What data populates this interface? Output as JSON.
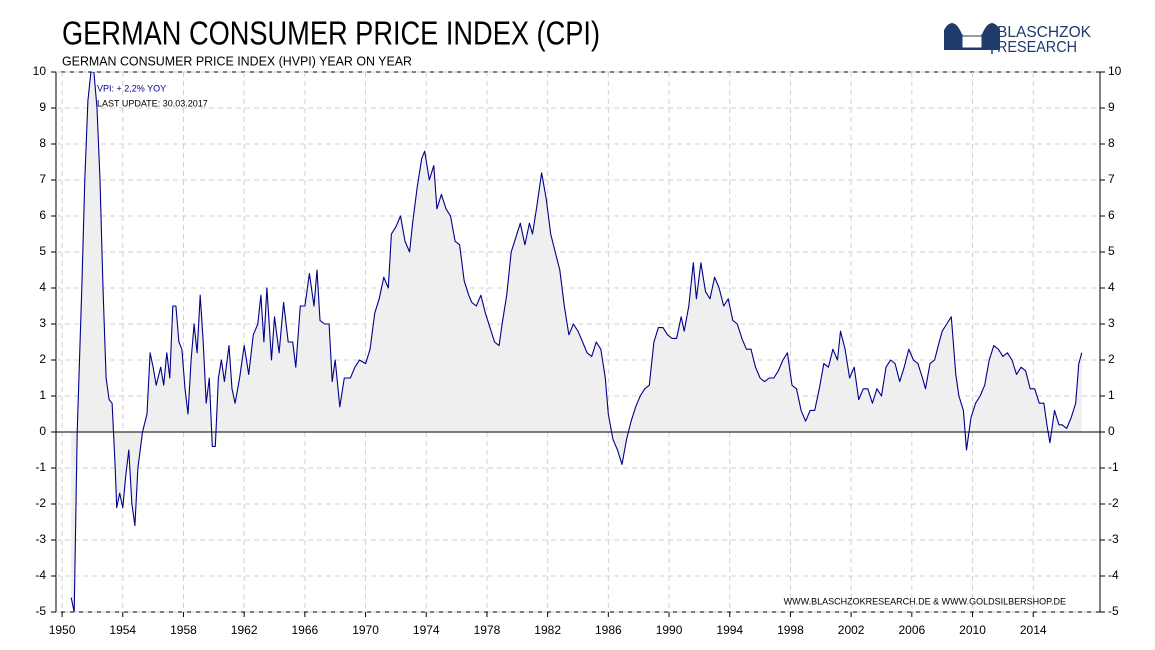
{
  "chart_data": {
    "type": "area-line",
    "title": "GERMAN CONSUMER PRICE INDEX (CPI)",
    "subtitle": "GERMAN CONSUMER PRICE INDEX (HVPI) YEAR  ON YEAR",
    "annotations": [
      "VPI: + 2,2%  YOY",
      "LAST UPDATE: 30.03.2017"
    ],
    "footer": "WWW.BLASCHZOKRESEARCH.DE  &  WWW.GOLDSILBERSHOP.DE",
    "logo": [
      "BLASCHZOK",
      "RESEARCH"
    ],
    "color": "#00008b",
    "fill": "#efefef",
    "grid": true,
    "xlim": [
      1949.6,
      2018.4
    ],
    "ylim": [
      -5,
      10
    ],
    "xticks": [
      1950,
      1954,
      1958,
      1962,
      1966,
      1970,
      1974,
      1978,
      1982,
      1986,
      1990,
      1994,
      1998,
      2002,
      2006,
      2010,
      2014
    ],
    "yticks": [
      -5,
      -4,
      -3,
      -2,
      -1,
      0,
      1,
      2,
      3,
      4,
      5,
      6,
      7,
      8,
      9,
      10
    ],
    "x": [
      1950.6,
      1950.8,
      1951.0,
      1951.3,
      1951.5,
      1951.7,
      1951.9,
      1952.1,
      1952.3,
      1952.5,
      1952.7,
      1952.9,
      1953.1,
      1953.3,
      1953.5,
      1953.6,
      1953.8,
      1954.0,
      1954.2,
      1954.4,
      1954.6,
      1954.8,
      1955.0,
      1955.3,
      1955.6,
      1955.8,
      1956.0,
      1956.2,
      1956.5,
      1956.7,
      1956.9,
      1957.1,
      1957.3,
      1957.5,
      1957.7,
      1957.9,
      1958.1,
      1958.3,
      1958.5,
      1958.7,
      1958.9,
      1959.1,
      1959.3,
      1959.5,
      1959.7,
      1959.9,
      1960.1,
      1960.3,
      1960.5,
      1960.7,
      1961.0,
      1961.2,
      1961.4,
      1961.7,
      1962.0,
      1962.3,
      1962.6,
      1962.9,
      1963.1,
      1963.3,
      1963.5,
      1963.8,
      1964.0,
      1964.3,
      1964.6,
      1964.9,
      1965.2,
      1965.4,
      1965.7,
      1966.0,
      1966.3,
      1966.6,
      1966.8,
      1967.0,
      1967.3,
      1967.6,
      1967.8,
      1968.0,
      1968.3,
      1968.6,
      1969.0,
      1969.3,
      1969.6,
      1970.0,
      1970.3,
      1970.6,
      1970.9,
      1971.2,
      1971.5,
      1971.7,
      1972.0,
      1972.3,
      1972.6,
      1972.9,
      1973.1,
      1973.4,
      1973.7,
      1973.9,
      1974.2,
      1974.5,
      1974.7,
      1975.0,
      1975.3,
      1975.6,
      1975.9,
      1976.2,
      1976.5,
      1976.8,
      1977.0,
      1977.3,
      1977.6,
      1977.9,
      1978.2,
      1978.5,
      1978.8,
      1979.0,
      1979.3,
      1979.6,
      1979.9,
      1980.2,
      1980.5,
      1980.8,
      1981.0,
      1981.3,
      1981.6,
      1981.9,
      1982.2,
      1982.5,
      1982.8,
      1983.1,
      1983.4,
      1983.7,
      1984.0,
      1984.3,
      1984.6,
      1984.9,
      1985.2,
      1985.5,
      1985.8,
      1986.0,
      1986.3,
      1986.6,
      1986.9,
      1987.2,
      1987.5,
      1987.8,
      1988.1,
      1988.4,
      1988.7,
      1989.0,
      1989.3,
      1989.6,
      1989.9,
      1990.2,
      1990.5,
      1990.8,
      1991.0,
      1991.3,
      1991.6,
      1991.8,
      1992.1,
      1992.4,
      1992.7,
      1993.0,
      1993.3,
      1993.6,
      1993.9,
      1994.2,
      1994.5,
      1994.8,
      1995.1,
      1995.4,
      1995.7,
      1996.0,
      1996.3,
      1996.6,
      1996.9,
      1997.2,
      1997.5,
      1997.8,
      1998.1,
      1998.4,
      1998.7,
      1999.0,
      1999.3,
      1999.6,
      1999.9,
      2000.2,
      2000.5,
      2000.8,
      2001.1,
      2001.3,
      2001.6,
      2001.9,
      2002.2,
      2002.5,
      2002.8,
      2003.1,
      2003.4,
      2003.7,
      2004.0,
      2004.3,
      2004.6,
      2004.9,
      2005.2,
      2005.5,
      2005.8,
      2006.1,
      2006.4,
      2006.7,
      2006.9,
      2007.2,
      2007.5,
      2007.8,
      2008.0,
      2008.3,
      2008.6,
      2008.9,
      2009.1,
      2009.4,
      2009.6,
      2009.9,
      2010.2,
      2010.5,
      2010.8,
      2011.1,
      2011.4,
      2011.7,
      2012.0,
      2012.3,
      2012.6,
      2012.9,
      2013.2,
      2013.5,
      2013.8,
      2014.1,
      2014.4,
      2014.7,
      2014.9,
      2015.1,
      2015.4,
      2015.7,
      2015.9,
      2016.2,
      2016.5,
      2016.8,
      2017.0,
      2017.2
    ],
    "values": [
      -4.6,
      -5,
      0,
      4,
      7,
      9.2,
      10,
      10,
      9,
      7,
      4,
      1.5,
      0.9,
      0.8,
      -1,
      -2.1,
      -1.7,
      -2.1,
      -1.2,
      -0.5,
      -2,
      -2.6,
      -1,
      0,
      0.5,
      2.2,
      1.8,
      1.3,
      1.8,
      1.3,
      2.2,
      1.5,
      3.5,
      3.5,
      2.5,
      2.3,
      1.2,
      0.5,
      2,
      3,
      2.2,
      3.8,
      2.5,
      0.8,
      1.5,
      -0.4,
      -0.4,
      1.5,
      2,
      1.4,
      2.4,
      1.2,
      0.8,
      1.5,
      2.4,
      1.6,
      2.7,
      3.0,
      3.8,
      2.5,
      4,
      2,
      3.2,
      2.2,
      3.6,
      2.5,
      2.5,
      1.8,
      3.5,
      3.5,
      4.4,
      3.5,
      4.5,
      3.1,
      3,
      3,
      1.4,
      2,
      0.7,
      1.5,
      1.5,
      1.8,
      2,
      1.9,
      2.3,
      3.3,
      3.7,
      4.3,
      4,
      5.5,
      5.7,
      6,
      5.3,
      5,
      5.8,
      6.8,
      7.6,
      7.8,
      7,
      7.4,
      6.2,
      6.6,
      6.2,
      6,
      5.3,
      5.2,
      4.2,
      3.8,
      3.6,
      3.5,
      3.8,
      3.3,
      2.9,
      2.5,
      2.4,
      3,
      3.8,
      5,
      5.4,
      5.8,
      5.2,
      5.8,
      5.5,
      6.3,
      7.2,
      6.5,
      5.5,
      5,
      4.5,
      3.5,
      2.7,
      3,
      2.8,
      2.5,
      2.2,
      2.1,
      2.5,
      2.3,
      1.5,
      0.5,
      -0.2,
      -0.5,
      -0.9,
      -0.2,
      0.3,
      0.7,
      1,
      1.2,
      1.3,
      2.5,
      2.9,
      2.9,
      2.7,
      2.6,
      2.6,
      3.2,
      2.8,
      3.5,
      4.7,
      3.7,
      4.7,
      3.9,
      3.7,
      4.3,
      4,
      3.5,
      3.7,
      3.1,
      3,
      2.6,
      2.3,
      2.3,
      1.8,
      1.5,
      1.4,
      1.5,
      1.5,
      1.7,
      2,
      2.2,
      1.3,
      1.2,
      0.6,
      0.3,
      0.6,
      0.6,
      1.2,
      1.9,
      1.8,
      2.3,
      2.0,
      2.8,
      2.3,
      1.5,
      1.8,
      0.9,
      1.2,
      1.2,
      0.8,
      1.2,
      1.0,
      1.8,
      2,
      1.9,
      1.4,
      1.8,
      2.3,
      2.0,
      1.9,
      1.5,
      1.2,
      1.9,
      2.0,
      2.5,
      2.8,
      3.0,
      3.2,
      1.6,
      1.0,
      0.6,
      -0.5,
      0.4,
      0.8,
      1.0,
      1.3,
      2.0,
      2.4,
      2.3,
      2.1,
      2.2,
      2.0,
      1.6,
      1.8,
      1.7,
      1.2,
      1.2,
      0.8,
      0.8,
      0.2,
      -0.3,
      0.6,
      0.2,
      0.2,
      0.1,
      0.4,
      0.8,
      1.9,
      2.2
    ]
  }
}
